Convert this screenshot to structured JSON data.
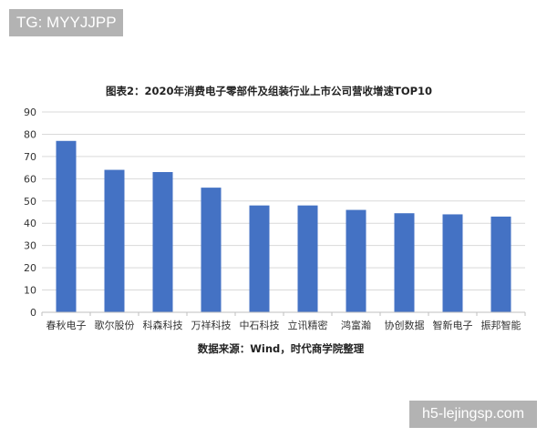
{
  "watermarks": {
    "top_left": "TG: MYYJJPP",
    "bottom_right": "h5-lejingsp.com"
  },
  "chart_data": {
    "type": "bar",
    "title": "图表2：2020年消费电子零部件及组装行业上市公司营收增速TOP10",
    "categories": [
      "春秋电子",
      "歌尔股份",
      "科森科技",
      "万祥科技",
      "中石科技",
      "立讯精密",
      "鸿富瀚",
      "协创数据",
      "智新电子",
      "振邦智能"
    ],
    "values": [
      77,
      64,
      63,
      56,
      48,
      48,
      46,
      44.5,
      44,
      43
    ],
    "yticks": [
      "0",
      "10",
      "20",
      "30",
      "40",
      "50",
      "60",
      "70",
      "80",
      "90"
    ],
    "ylim": [
      0,
      90
    ],
    "xlabel": "",
    "ylabel": "",
    "grid": true,
    "bar_color": "#4472c4",
    "grid_color": "#d9d9d9",
    "source": "数据来源：Wind，时代商学院整理"
  }
}
